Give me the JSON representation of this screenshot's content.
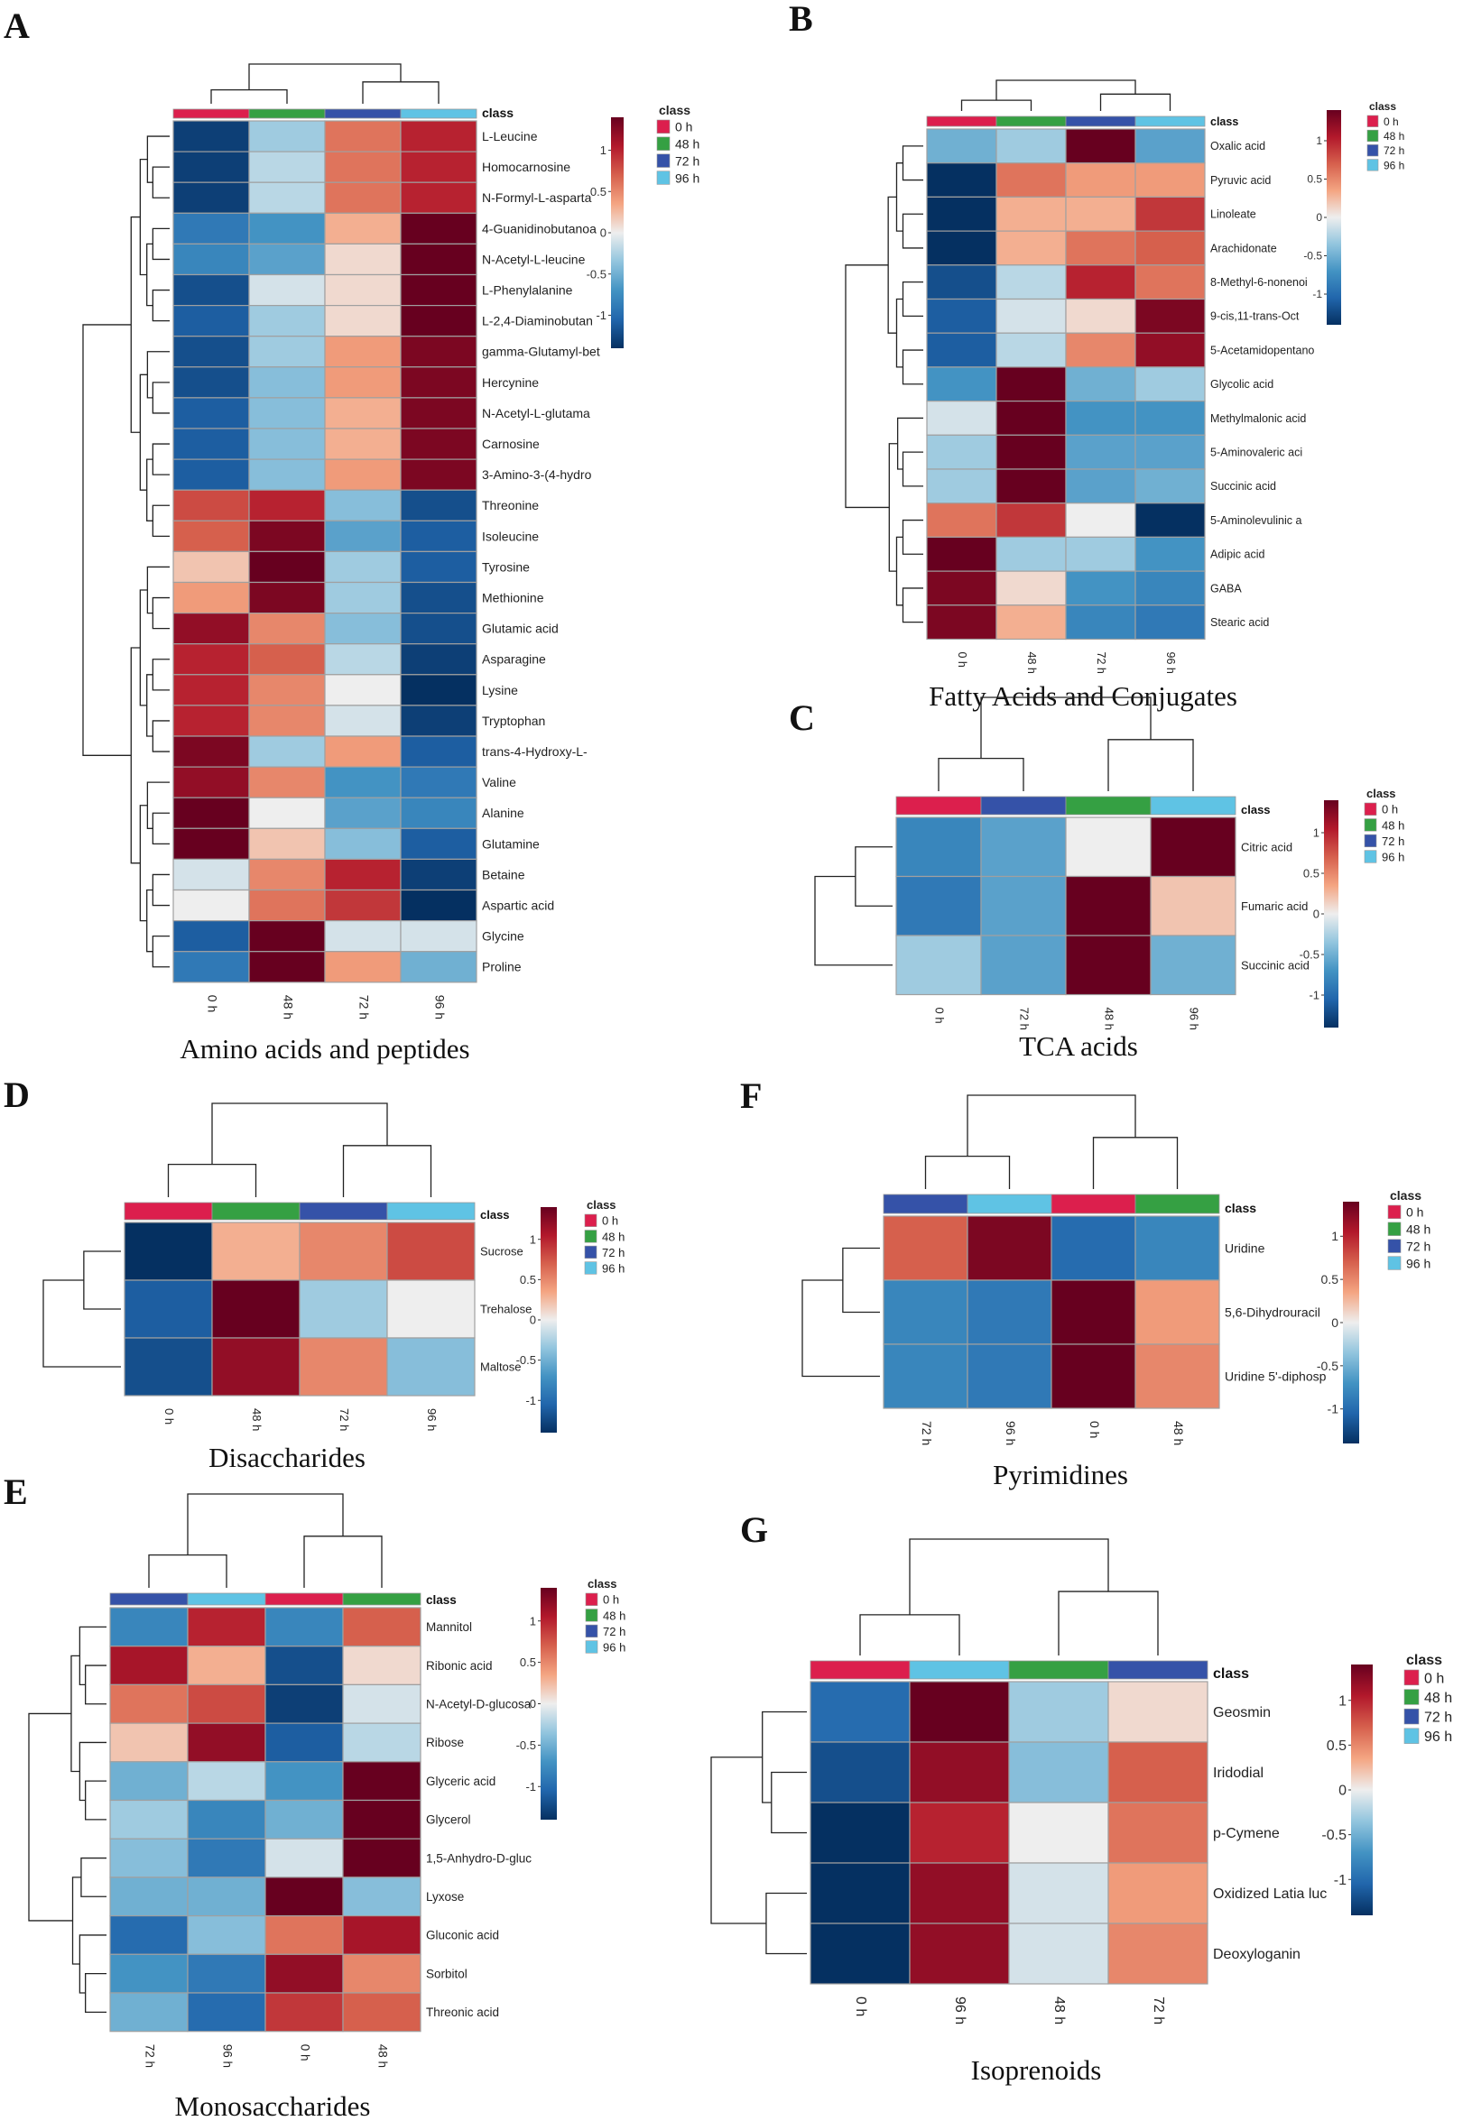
{
  "classes": [
    {
      "label": "0 h",
      "color": "#dc1f4d"
    },
    {
      "label": "48 h",
      "color": "#35a043"
    },
    {
      "label": "72 h",
      "color": "#3552a8"
    },
    {
      "label": "96 h",
      "color": "#5fc3e4"
    }
  ],
  "chart_data": [
    {
      "id": "A",
      "type": "heatmap",
      "letter": "A",
      "title": "Amino acids and peptides",
      "class_header": "class",
      "legend_title": "class",
      "colorbar_ticks": [
        1,
        0.5,
        0,
        -0.5,
        -1
      ],
      "colorbar_range": [
        -1.4,
        1.4
      ],
      "columns": [
        "0 h",
        "48 h",
        "72 h",
        "96 h"
      ],
      "column_class_index": [
        0,
        1,
        2,
        3
      ],
      "rows": [
        "L-Leucine",
        "Homocarnosine",
        "N-Formyl-L-asparta",
        "4-Guanidinobutanoa",
        "N-Acetyl-L-leucine",
        "L-Phenylalanine",
        "L-2,4-Diaminobutan",
        "gamma-Glutamyl-bet",
        "Hercynine",
        "N-Acetyl-L-glutama",
        "Carnosine",
        "3-Amino-3-(4-hydro",
        "Threonine",
        "Isoleucine",
        "Tyrosine",
        "Methionine",
        "Glutamic acid",
        "Asparagine",
        "Lysine",
        "Tryptophan",
        "trans-4-Hydroxy-L-",
        "Valine",
        "Alanine",
        "Glutamine",
        "Betaine",
        "Aspartic acid",
        "Glycine",
        "Proline"
      ],
      "values": [
        [
          -1.3,
          -0.3,
          0.6,
          1.0
        ],
        [
          -1.3,
          -0.2,
          0.6,
          1.0
        ],
        [
          -1.3,
          -0.2,
          0.6,
          1.0
        ],
        [
          -0.9,
          -0.7,
          0.3,
          1.4
        ],
        [
          -0.8,
          -0.6,
          0.1,
          1.4
        ],
        [
          -1.2,
          -0.1,
          0.1,
          1.4
        ],
        [
          -1.1,
          -0.3,
          0.1,
          1.4
        ],
        [
          -1.2,
          -0.3,
          0.4,
          1.3
        ],
        [
          -1.2,
          -0.4,
          0.4,
          1.3
        ],
        [
          -1.1,
          -0.4,
          0.3,
          1.3
        ],
        [
          -1.1,
          -0.4,
          0.3,
          1.3
        ],
        [
          -1.1,
          -0.4,
          0.4,
          1.3
        ],
        [
          0.8,
          1.0,
          -0.4,
          -1.2
        ],
        [
          0.7,
          1.3,
          -0.6,
          -1.1
        ],
        [
          0.2,
          1.4,
          -0.3,
          -1.1
        ],
        [
          0.4,
          1.3,
          -0.3,
          -1.2
        ],
        [
          1.2,
          0.5,
          -0.4,
          -1.2
        ],
        [
          1.0,
          0.7,
          -0.2,
          -1.3
        ],
        [
          1.0,
          0.5,
          0.0,
          -1.4
        ],
        [
          1.0,
          0.5,
          -0.1,
          -1.3
        ],
        [
          1.3,
          -0.3,
          0.4,
          -1.1
        ],
        [
          1.2,
          0.5,
          -0.7,
          -0.9
        ],
        [
          1.4,
          0.0,
          -0.6,
          -0.8
        ],
        [
          1.4,
          0.2,
          -0.4,
          -1.1
        ],
        [
          -0.1,
          0.5,
          1.0,
          -1.3
        ],
        [
          0.0,
          0.6,
          0.9,
          -1.4
        ],
        [
          -1.1,
          1.4,
          -0.1,
          -0.1
        ],
        [
          -0.9,
          1.4,
          0.4,
          -0.5
        ]
      ]
    },
    {
      "id": "B",
      "type": "heatmap",
      "letter": "B",
      "title": "Fatty Acids and Conjugates",
      "class_header": "class",
      "legend_title": "class",
      "colorbar_ticks": [
        1,
        0.5,
        0,
        -0.5,
        -1
      ],
      "colorbar_range": [
        -1.4,
        1.4
      ],
      "columns": [
        "0 h",
        "48 h",
        "72 h",
        "96 h"
      ],
      "column_class_index": [
        0,
        1,
        2,
        3
      ],
      "rows": [
        "Oxalic acid",
        "Pyruvic acid",
        "Linoleate",
        "Arachidonate",
        "8-Methyl-6-nonenoi",
        "9-cis,11-trans-Oct",
        "5-Acetamidopentano",
        "Glycolic acid",
        "Methylmalonic acid",
        "5-Aminovaleric aci",
        "Succinic acid",
        "5-Aminolevulinic a",
        "Adipic acid",
        "GABA",
        "Stearic acid"
      ],
      "values": [
        [
          -0.5,
          -0.3,
          1.4,
          -0.6
        ],
        [
          -1.4,
          0.6,
          0.4,
          0.4
        ],
        [
          -1.4,
          0.3,
          0.3,
          0.9
        ],
        [
          -1.4,
          0.3,
          0.6,
          0.7
        ],
        [
          -1.2,
          -0.2,
          1.0,
          0.6
        ],
        [
          -1.1,
          -0.1,
          0.1,
          1.3
        ],
        [
          -1.1,
          -0.2,
          0.5,
          1.2
        ],
        [
          -0.7,
          1.4,
          -0.5,
          -0.3
        ],
        [
          -0.1,
          1.4,
          -0.7,
          -0.7
        ],
        [
          -0.3,
          1.4,
          -0.6,
          -0.6
        ],
        [
          -0.3,
          1.4,
          -0.6,
          -0.5
        ],
        [
          0.6,
          0.9,
          0.0,
          -1.4
        ],
        [
          1.4,
          -0.3,
          -0.3,
          -0.7
        ],
        [
          1.3,
          0.1,
          -0.7,
          -0.8
        ],
        [
          1.3,
          0.3,
          -0.8,
          -0.9
        ]
      ]
    },
    {
      "id": "C",
      "type": "heatmap",
      "letter": "C",
      "title": "TCA acids",
      "class_header": "class",
      "legend_title": "class",
      "colorbar_ticks": [
        1,
        0.5,
        0,
        -0.5,
        -1
      ],
      "colorbar_range": [
        -1.4,
        1.4
      ],
      "columns": [
        "0 h",
        "72 h",
        "48 h",
        "96 h"
      ],
      "column_class_index": [
        0,
        2,
        1,
        3
      ],
      "rows": [
        "Citric acid",
        "Fumaric acid",
        "Succinic acid"
      ],
      "values": [
        [
          -0.8,
          -0.6,
          0.0,
          1.4
        ],
        [
          -0.9,
          -0.6,
          1.4,
          0.2
        ],
        [
          -0.3,
          -0.6,
          1.4,
          -0.5
        ]
      ]
    },
    {
      "id": "D",
      "type": "heatmap",
      "letter": "D",
      "title": "Disaccharides",
      "class_header": "class",
      "legend_title": "class",
      "colorbar_ticks": [
        1,
        0.5,
        0,
        -0.5,
        -1
      ],
      "colorbar_range": [
        -1.4,
        1.4
      ],
      "columns": [
        "0 h",
        "48 h",
        "72 h",
        "96 h"
      ],
      "column_class_index": [
        0,
        1,
        2,
        3
      ],
      "rows": [
        "Sucrose",
        "Trehalose",
        "Maltose"
      ],
      "values": [
        [
          -1.4,
          0.3,
          0.5,
          0.8
        ],
        [
          -1.1,
          1.4,
          -0.3,
          0.0
        ],
        [
          -1.2,
          1.2,
          0.5,
          -0.4
        ]
      ]
    },
    {
      "id": "E",
      "type": "heatmap",
      "letter": "E",
      "title": "Monosaccharides",
      "class_header": "class",
      "legend_title": "class",
      "colorbar_ticks": [
        1,
        0.5,
        0,
        -0.5,
        -1
      ],
      "colorbar_range": [
        -1.4,
        1.4
      ],
      "columns": [
        "72 h",
        "96 h",
        "0 h",
        "48 h"
      ],
      "column_class_index": [
        2,
        3,
        0,
        1
      ],
      "rows": [
        "Mannitol",
        "Ribonic acid",
        "N-Acetyl-D-glucosa",
        "Ribose",
        "Glyceric acid",
        "Glycerol",
        "1,5-Anhydro-D-gluc",
        "Lyxose",
        "Gluconic acid",
        "Sorbitol",
        "Threonic acid"
      ],
      "values": [
        [
          -0.8,
          1.0,
          -0.8,
          0.7
        ],
        [
          1.1,
          0.3,
          -1.2,
          0.1
        ],
        [
          0.6,
          0.8,
          -1.3,
          -0.1
        ],
        [
          0.2,
          1.2,
          -1.1,
          -0.2
        ],
        [
          -0.5,
          -0.2,
          -0.7,
          1.4
        ],
        [
          -0.3,
          -0.8,
          -0.5,
          1.4
        ],
        [
          -0.4,
          -0.9,
          -0.1,
          1.4
        ],
        [
          -0.5,
          -0.5,
          1.4,
          -0.4
        ],
        [
          -1.0,
          -0.4,
          0.6,
          1.1
        ],
        [
          -0.7,
          -0.9,
          1.2,
          0.5
        ],
        [
          -0.5,
          -1.0,
          0.9,
          0.7
        ]
      ]
    },
    {
      "id": "F",
      "type": "heatmap",
      "letter": "F",
      "title": "Pyrimidines",
      "class_header": "class",
      "legend_title": "class",
      "colorbar_ticks": [
        1,
        0.5,
        0,
        -0.5,
        -1
      ],
      "colorbar_range": [
        -1.4,
        1.4
      ],
      "columns": [
        "72 h",
        "96 h",
        "0 h",
        "48 h"
      ],
      "column_class_index": [
        2,
        3,
        0,
        1
      ],
      "rows": [
        "Uridine",
        "5,6-Dihydrouracil",
        "Uridine 5'-diphosp"
      ],
      "values": [
        [
          0.7,
          1.3,
          -1.0,
          -0.8
        ],
        [
          -0.8,
          -0.9,
          1.4,
          0.4
        ],
        [
          -0.8,
          -0.9,
          1.4,
          0.5
        ]
      ]
    },
    {
      "id": "G",
      "type": "heatmap",
      "letter": "G",
      "title": "Isoprenoids",
      "class_header": "class",
      "legend_title": "class",
      "colorbar_ticks": [
        1,
        0.5,
        0,
        -0.5,
        -1
      ],
      "colorbar_range": [
        -1.4,
        1.4
      ],
      "columns": [
        "0 h",
        "96 h",
        "48 h",
        "72 h"
      ],
      "column_class_index": [
        0,
        3,
        1,
        2
      ],
      "rows": [
        "Geosmin",
        "Iridodial",
        "p-Cymene",
        "Oxidized Latia luc",
        "Deoxyloganin"
      ],
      "values": [
        [
          -1.0,
          1.4,
          -0.3,
          0.1
        ],
        [
          -1.2,
          1.2,
          -0.4,
          0.7
        ],
        [
          -1.4,
          1.0,
          0.0,
          0.6
        ],
        [
          -1.4,
          1.2,
          -0.1,
          0.4
        ],
        [
          -1.4,
          1.2,
          -0.1,
          0.5
        ]
      ]
    }
  ]
}
